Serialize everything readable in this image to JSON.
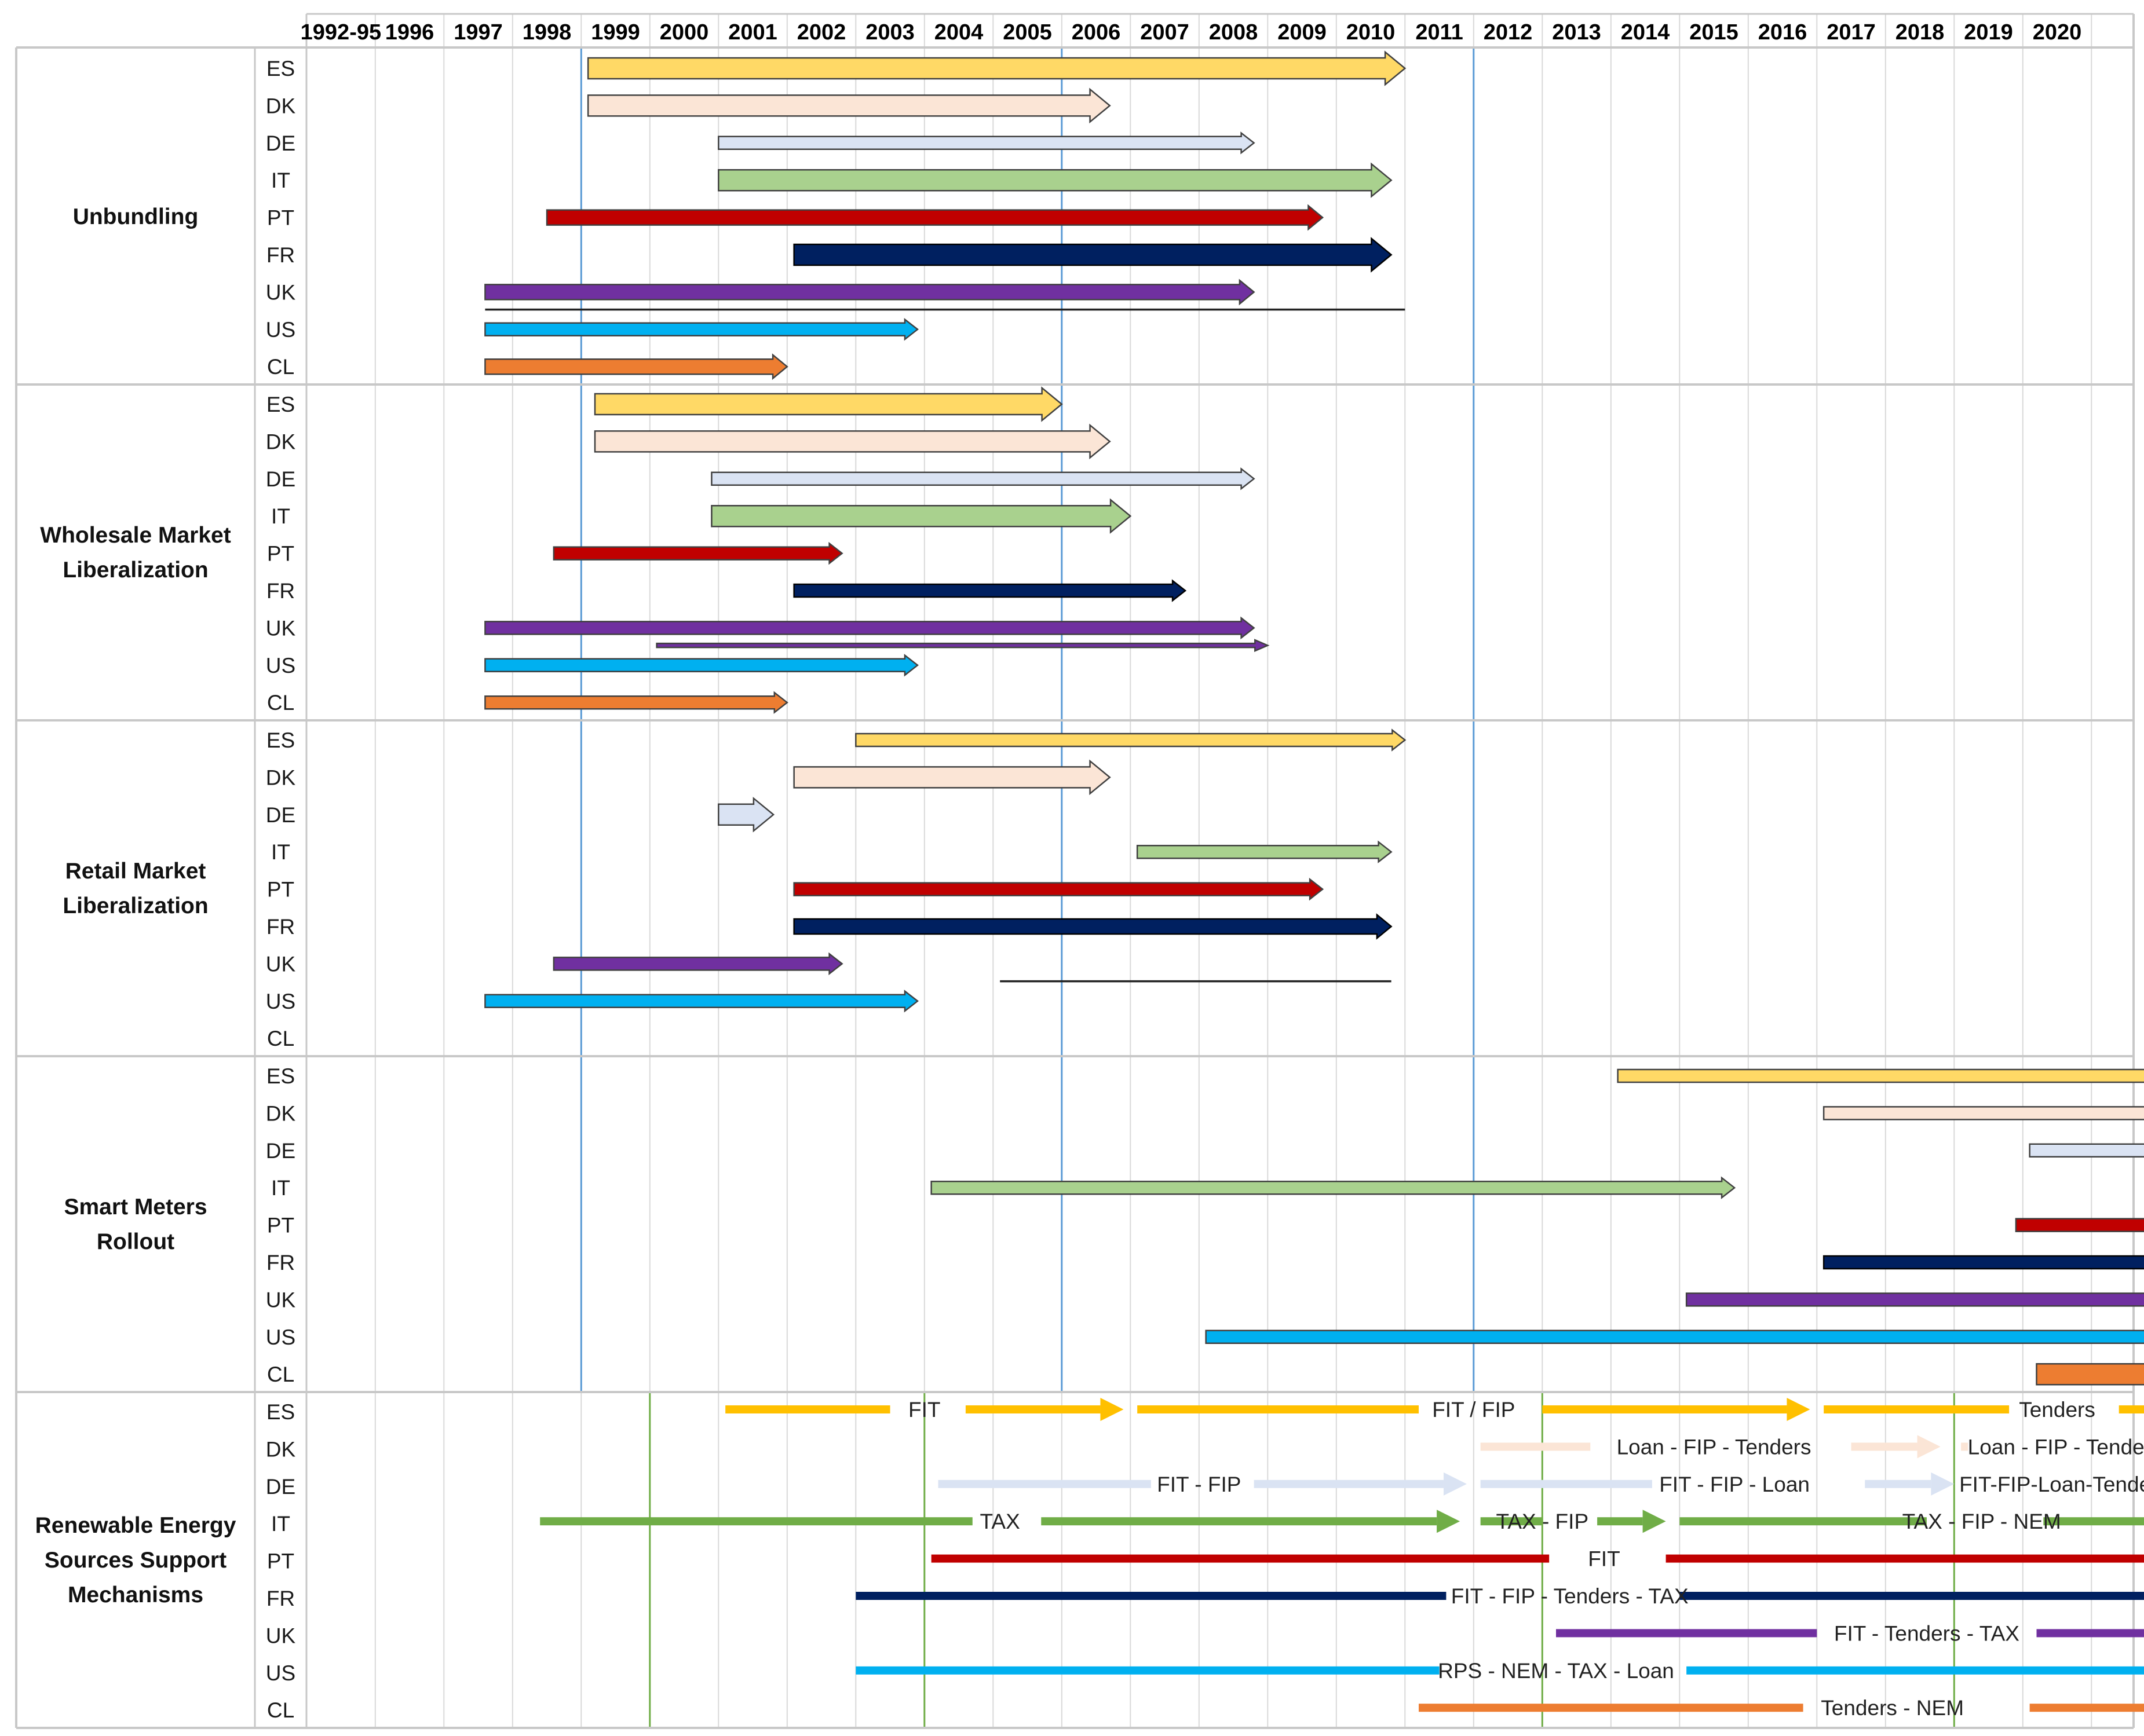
{
  "chart_data": {
    "type": "table",
    "title": "",
    "years": [
      "1992-95",
      "1996",
      "1997",
      "1998",
      "1999",
      "2000",
      "2001",
      "2002",
      "2003",
      "2004",
      "2005",
      "2006",
      "2007",
      "2008",
      "2009",
      "2010",
      "2011",
      "2012",
      "2013",
      "2014",
      "2015",
      "2016",
      "2017",
      "2018",
      "2019",
      "2020"
    ],
    "countries": [
      "ES",
      "DK",
      "DE",
      "IT",
      "PT",
      "FR",
      "UK",
      "US",
      "CL"
    ],
    "colors": {
      "ES": "#ffd966",
      "DK": "#fbe5d6",
      "DE": "#dae3f3",
      "IT": "#a9d18e",
      "PT": "#c00000",
      "FR": "#002060",
      "UK": "#7030a0",
      "US": "#00b0f0",
      "CL": "#ed7d31"
    },
    "res_colors": {
      "ES": "#ffc000",
      "DK": "#fbe5d6",
      "DE": "#dae3f3",
      "IT": "#70ad47",
      "PT": "#c00000",
      "FR": "#002060",
      "UK": "#7030a0",
      "US": "#00b0f0",
      "CL": "#ed7d31"
    },
    "reference_lines": [
      {
        "year": 1996.0,
        "color": "#5b9bd5",
        "sections": [
          0,
          1,
          2,
          3
        ]
      },
      {
        "year": 2003.0,
        "color": "#5b9bd5",
        "sections": [
          0,
          1,
          2,
          3
        ]
      },
      {
        "year": 2009.0,
        "color": "#5b9bd5",
        "sections": [
          0,
          1,
          2,
          3
        ]
      },
      {
        "year": 1997.0,
        "color": "#70ad47",
        "sections": [
          4
        ]
      },
      {
        "year": 2001.0,
        "color": "#70ad47",
        "sections": [
          4
        ]
      },
      {
        "year": 2010.0,
        "color": "#70ad47",
        "sections": [
          4
        ]
      },
      {
        "year": 2016.0,
        "color": "#70ad47",
        "sections": [
          4
        ]
      }
    ],
    "sections": [
      {
        "name_lines": [
          "Unbundling"
        ],
        "bars": [
          {
            "c": "ES",
            "start": 1996.1,
            "end": 2008.0,
            "w": "thick"
          },
          {
            "c": "DK",
            "start": 1996.1,
            "end": 2003.7,
            "w": "thick"
          },
          {
            "c": "DE",
            "start": 1998.0,
            "end": 2005.8,
            "w": "thin"
          },
          {
            "c": "IT",
            "start": 1998.0,
            "end": 2007.8,
            "w": "thick"
          },
          {
            "c": "PT",
            "start": 1995.5,
            "end": 2006.8,
            "w": "med"
          },
          {
            "c": "FR",
            "start": 1999.1,
            "end": 2007.8,
            "w": "thick"
          },
          {
            "c": "UK",
            "start": 1994.6,
            "end": 2005.8,
            "w": "med"
          },
          {
            "c": "US",
            "start": 1994.6,
            "end": 2000.9,
            "w": "thin"
          },
          {
            "c": "CL",
            "start": 1994.6,
            "end": 1999.0,
            "w": "med"
          }
        ],
        "lines": [
          {
            "start": 1994.6,
            "end": 2008.0,
            "after": "UK"
          }
        ]
      },
      {
        "name_lines": [
          "Wholesale Market",
          "Liberalization"
        ],
        "bars": [
          {
            "c": "ES",
            "start": 1996.2,
            "end": 2003.0,
            "w": "thick"
          },
          {
            "c": "DK",
            "start": 1996.2,
            "end": 2003.7,
            "w": "thick"
          },
          {
            "c": "DE",
            "start": 1997.9,
            "end": 2005.8,
            "w": "thin"
          },
          {
            "c": "IT",
            "start": 1997.9,
            "end": 2004.0,
            "w": "thick"
          },
          {
            "c": "PT",
            "start": 1995.6,
            "end": 1999.8,
            "w": "thin"
          },
          {
            "c": "FR",
            "start": 1999.1,
            "end": 2004.8,
            "w": "thin"
          },
          {
            "c": "UK",
            "start": 1994.6,
            "end": 2005.8,
            "w": "thin"
          },
          {
            "c": "US",
            "start": 1994.6,
            "end": 2000.9,
            "w": "thin"
          },
          {
            "c": "CL",
            "start": 1994.6,
            "end": 1999.0,
            "w": "thin"
          }
        ],
        "lines": [
          {
            "start": 1997.1,
            "end": 2006.0,
            "after": "UK",
            "color": "#7030a0",
            "arrow": true
          }
        ]
      },
      {
        "name_lines": [
          "Retail Market",
          "Liberalization"
        ],
        "bars": [
          {
            "c": "ES",
            "start": 2000.0,
            "end": 2008.0,
            "w": "thin"
          },
          {
            "c": "DK",
            "start": 1999.1,
            "end": 2003.7,
            "w": "thick"
          },
          {
            "c": "DE",
            "start": 1998.0,
            "end": 1998.8,
            "w": "thick"
          },
          {
            "c": "IT",
            "start": 2004.1,
            "end": 2007.8,
            "w": "thin"
          },
          {
            "c": "PT",
            "start": 1999.1,
            "end": 2006.8,
            "w": "thin"
          },
          {
            "c": "FR",
            "start": 1999.1,
            "end": 2007.8,
            "w": "med"
          },
          {
            "c": "UK",
            "start": 1995.6,
            "end": 1999.8,
            "w": "thin"
          },
          {
            "c": "US",
            "start": 1994.6,
            "end": 2000.9,
            "w": "thin"
          },
          {
            "c": "CL",
            "start": 2020.2,
            "end": 2020.7,
            "w": "thin"
          }
        ],
        "lines": [
          {
            "start": 2002.1,
            "end": 2007.8,
            "after": "UK"
          }
        ]
      },
      {
        "name_lines": [
          "Smart Meters",
          "Rollout"
        ],
        "bars": [
          {
            "c": "ES",
            "start": 2011.1,
            "end": 2019.0,
            "w": "thin"
          },
          {
            "c": "DK",
            "start": 2014.1,
            "end": 2020.7,
            "w": "thin"
          },
          {
            "c": "DE",
            "start": 2017.1,
            "end": 2020.7,
            "w": "thin"
          },
          {
            "c": "IT",
            "start": 2001.1,
            "end": 2012.8,
            "w": "thin"
          },
          {
            "c": "PT",
            "start": 2016.9,
            "end": 2020.7,
            "w": "thin"
          },
          {
            "c": "FR",
            "start": 2014.1,
            "end": 2020.7,
            "w": "thin"
          },
          {
            "c": "UK",
            "start": 2012.1,
            "end": 2020.7,
            "w": "thin"
          },
          {
            "c": "US",
            "start": 2005.1,
            "end": 2020.7,
            "w": "thin"
          },
          {
            "c": "CL",
            "start": 2017.2,
            "end": 2020.7,
            "w": "thick"
          }
        ],
        "lines": []
      },
      {
        "name_lines": [
          "Renewable Energy",
          "Sources Support",
          "Mechanisms"
        ],
        "res": [
          {
            "c": "ES",
            "segs": [
              [
                1998.1,
                2000.5,
                false
              ],
              [
                2001.6,
                2003.9,
                true
              ],
              [
                2004.1,
                2008.2,
                false
              ],
              [
                2010.0,
                2013.9,
                true
              ],
              [
                2014.1,
                2016.8,
                false
              ],
              [
                2018.4,
                2020.7,
                true
              ]
            ],
            "labels": [
              {
                "t": "FIT",
                "x": 2001.0
              },
              {
                "t": "FIT / FIP",
                "x": 2009.0
              },
              {
                "t": "Tenders",
                "x": 2017.5
              }
            ]
          },
          {
            "c": "DK",
            "segs": [
              [
                2009.1,
                2010.7,
                false
              ],
              [
                2014.5,
                2015.8,
                true
              ],
              [
                2016.1,
                2016.2,
                false
              ],
              [
                2020.3,
                2020.7,
                true
              ]
            ],
            "labels": [
              {
                "t": "Loan - FIP - Tenders",
                "x": 2012.5
              },
              {
                "t": "Loan - FIP - Tenders - NEM",
                "x": 2018.1
              }
            ]
          },
          {
            "c": "DE",
            "segs": [
              [
                2001.2,
                2004.3,
                false
              ],
              [
                2005.8,
                2008.9,
                true
              ],
              [
                2009.1,
                2011.6,
                false
              ],
              [
                2014.7,
                2016.0,
                true
              ]
            ],
            "labels": [
              {
                "t": "FIT - FIP",
                "x": 2005.0
              },
              {
                "t": "FIT - FIP - Loan",
                "x": 2012.8
              },
              {
                "t": "FIT-FIP-Loan-Tenders-NEM",
                "x": 2018.0
              }
            ]
          },
          {
            "c": "IT",
            "segs": [
              [
                1995.4,
                2001.7,
                false
              ],
              [
                2002.7,
                2008.8,
                true
              ],
              [
                2009.1,
                2010.0,
                false
              ],
              [
                2010.8,
                2011.8,
                true
              ],
              [
                2012.0,
                2015.6,
                false
              ],
              [
                2017.3,
                2020.7,
                true
              ]
            ],
            "labels": [
              {
                "t": "TAX",
                "x": 2002.1
              },
              {
                "t": "TAX - FIP",
                "x": 2010.0
              },
              {
                "t": "TAX - FIP - NEM",
                "x": 2016.4
              }
            ]
          },
          {
            "c": "PT",
            "segs": [
              [
                2001.1,
                2010.1,
                false
              ],
              [
                2011.8,
                2020.7,
                true
              ]
            ],
            "labels": [
              {
                "t": "FIT",
                "x": 2010.9
              }
            ]
          },
          {
            "c": "FR",
            "segs": [
              [
                2000.0,
                2008.6,
                false
              ],
              [
                2012.0,
                2020.7,
                true
              ]
            ],
            "labels": [
              {
                "t": "FIT - FIP - Tenders - TAX",
                "x": 2010.4
              }
            ]
          },
          {
            "c": "UK",
            "segs": [
              [
                2010.2,
                2014.0,
                false
              ],
              [
                2017.2,
                2020.7,
                true
              ]
            ],
            "labels": [
              {
                "t": "FIT - Tenders - TAX",
                "x": 2015.6
              }
            ]
          },
          {
            "c": "US",
            "segs": [
              [
                2000.0,
                2008.5,
                false
              ],
              [
                2012.1,
                2020.7,
                true
              ]
            ],
            "labels": [
              {
                "t": "RPS - NEM - TAX - Loan",
                "x": 2010.2
              }
            ]
          },
          {
            "c": "CL",
            "segs": [
              [
                2008.2,
                2013.8,
                false
              ],
              [
                2017.1,
                2020.7,
                true
              ]
            ],
            "labels": [
              {
                "t": "Tenders - NEM",
                "x": 2015.1
              }
            ]
          }
        ]
      }
    ]
  }
}
